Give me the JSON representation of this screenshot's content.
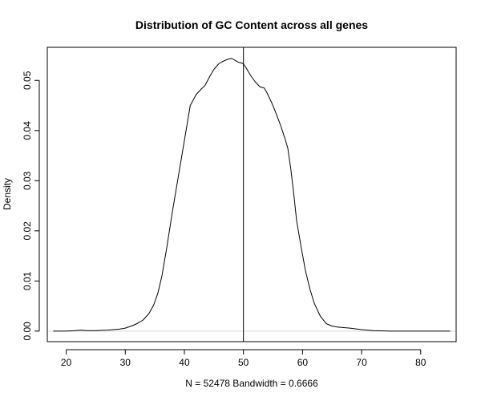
{
  "chart_data": {
    "type": "line",
    "title": "Distribution of GC Content across all genes",
    "xlabel": "N = 52478   Bandwidth = 0.6666",
    "ylabel": "Density",
    "xlim": [
      16.8,
      86.0
    ],
    "ylim": [
      -0.0021,
      0.0566
    ],
    "x_ticks": [
      20,
      30,
      40,
      50,
      60,
      70,
      80
    ],
    "x_tick_labels": [
      "20",
      "30",
      "40",
      "50",
      "60",
      "70",
      "80"
    ],
    "y_ticks": [
      0.0,
      0.01,
      0.02,
      0.03,
      0.04,
      0.05
    ],
    "y_tick_labels": [
      "0.00",
      "0.01",
      "0.02",
      "0.03",
      "0.04",
      "0.05"
    ],
    "grid": false,
    "legend": "none",
    "baseline_y": 0,
    "vline_x": 50,
    "line_color": "#000000",
    "baseline_color": "#d9d9d9",
    "series": [
      {
        "x": [
          17.8,
          20.0,
          21.5,
          22.5,
          23.5,
          25.0,
          27.0,
          29.0,
          30.0,
          31.0,
          32.0,
          33.0,
          34.0,
          34.8,
          35.5,
          36.2,
          37.0,
          38.0,
          39.0,
          40.0,
          41.0,
          42.0,
          42.8,
          43.5,
          44.3,
          45.0,
          45.8,
          46.5,
          47.3,
          48.0,
          48.6,
          49.2,
          49.6,
          50.0,
          50.4,
          51.2,
          52.0,
          52.8,
          53.5,
          54.0,
          54.8,
          55.5,
          56.3,
          57.0,
          57.5,
          58.0,
          58.5,
          59.0,
          59.8,
          60.5,
          61.3,
          62.0,
          63.0,
          64.0,
          65.0,
          66.0,
          68.0,
          70.0,
          72.0,
          75.0,
          78.0,
          82.0,
          85.0
        ],
        "y": [
          0.0,
          0.0,
          0.0001,
          0.0002,
          0.0001,
          0.0001,
          0.0002,
          0.0004,
          0.0006,
          0.001,
          0.0015,
          0.0022,
          0.0035,
          0.0052,
          0.0075,
          0.011,
          0.0165,
          0.024,
          0.031,
          0.038,
          0.045,
          0.0472,
          0.0482,
          0.049,
          0.0508,
          0.0522,
          0.0533,
          0.0538,
          0.0542,
          0.0544,
          0.054,
          0.0536,
          0.0535,
          0.0533,
          0.0526,
          0.051,
          0.0497,
          0.0487,
          0.0485,
          0.0475,
          0.0455,
          0.0435,
          0.041,
          0.0385,
          0.0365,
          0.0325,
          0.0275,
          0.022,
          0.0165,
          0.012,
          0.0082,
          0.0055,
          0.003,
          0.0015,
          0.001,
          0.0008,
          0.0006,
          0.0003,
          0.0001,
          0.0,
          0.0,
          0.0,
          0.0
        ]
      }
    ]
  }
}
